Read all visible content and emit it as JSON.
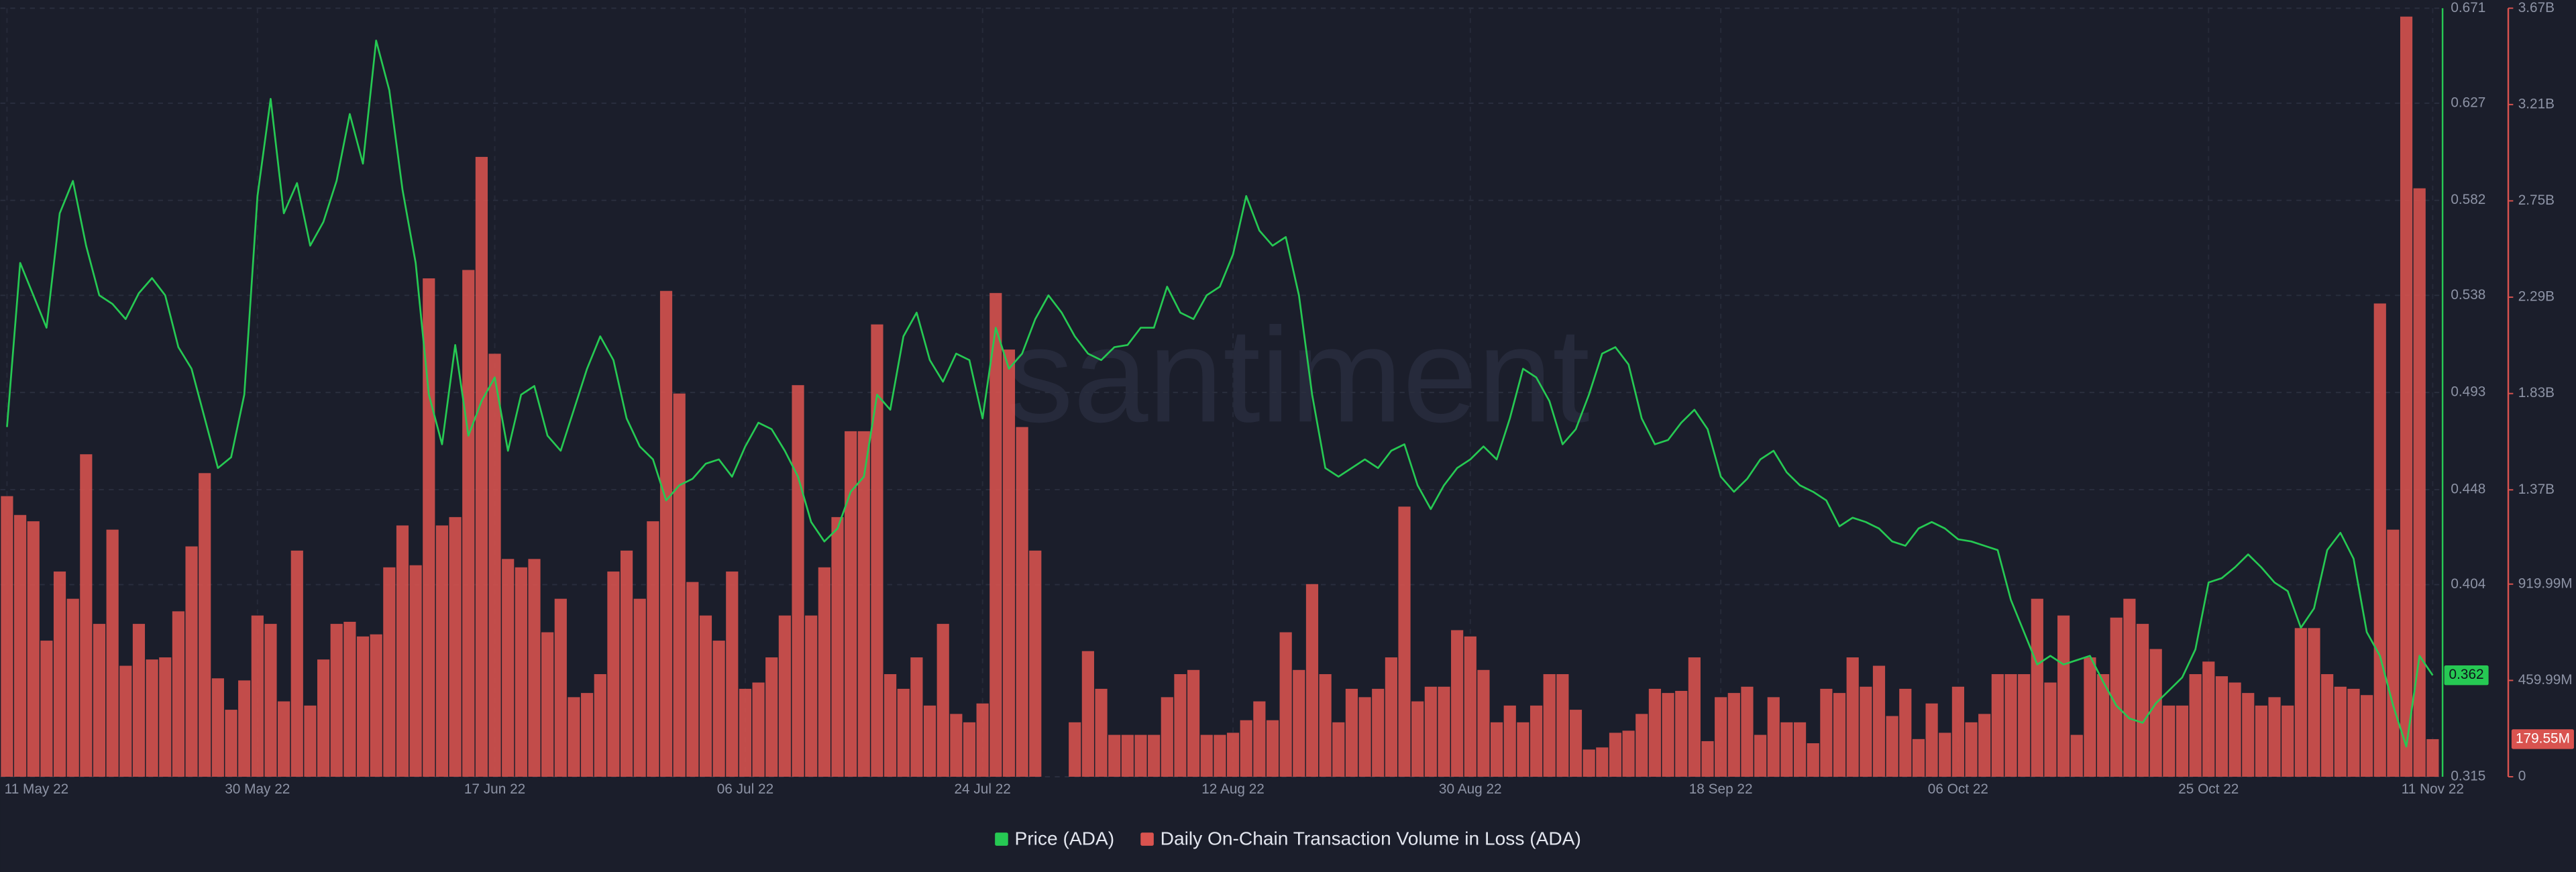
{
  "chart_data": {
    "type": "combo",
    "watermark": "santiment",
    "x": [
      "11 May 22",
      "12 May 22",
      "13 May 22",
      "14 May 22",
      "15 May 22",
      "16 May 22",
      "17 May 22",
      "18 May 22",
      "19 May 22",
      "20 May 22",
      "21 May 22",
      "22 May 22",
      "23 May 22",
      "24 May 22",
      "25 May 22",
      "26 May 22",
      "27 May 22",
      "28 May 22",
      "29 May 22",
      "30 May 22",
      "31 May 22",
      "01 Jun 22",
      "02 Jun 22",
      "03 Jun 22",
      "04 Jun 22",
      "05 Jun 22",
      "06 Jun 22",
      "07 Jun 22",
      "08 Jun 22",
      "09 Jun 22",
      "10 Jun 22",
      "11 Jun 22",
      "12 Jun 22",
      "13 Jun 22",
      "14 Jun 22",
      "15 Jun 22",
      "16 Jun 22",
      "17 Jun 22",
      "18 Jun 22",
      "19 Jun 22",
      "20 Jun 22",
      "21 Jun 22",
      "22 Jun 22",
      "23 Jun 22",
      "24 Jun 22",
      "25 Jun 22",
      "26 Jun 22",
      "27 Jun 22",
      "28 Jun 22",
      "29 Jun 22",
      "30 Jun 22",
      "01 Jul 22",
      "02 Jul 22",
      "03 Jul 22",
      "04 Jul 22",
      "05 Jul 22",
      "06 Jul 22",
      "07 Jul 22",
      "08 Jul 22",
      "09 Jul 22",
      "10 Jul 22",
      "11 Jul 22",
      "12 Jul 22",
      "13 Jul 22",
      "14 Jul 22",
      "15 Jul 22",
      "16 Jul 22",
      "17 Jul 22",
      "18 Jul 22",
      "19 Jul 22",
      "20 Jul 22",
      "21 Jul 22",
      "22 Jul 22",
      "23 Jul 22",
      "24 Jul 22",
      "25 Jul 22",
      "26 Jul 22",
      "27 Jul 22",
      "28 Jul 22",
      "29 Jul 22",
      "30 Jul 22",
      "31 Jul 22",
      "01 Aug 22",
      "02 Aug 22",
      "03 Aug 22",
      "04 Aug 22",
      "05 Aug 22",
      "06 Aug 22",
      "07 Aug 22",
      "08 Aug 22",
      "09 Aug 22",
      "10 Aug 22",
      "11 Aug 22",
      "12 Aug 22",
      "13 Aug 22",
      "14 Aug 22",
      "15 Aug 22",
      "16 Aug 22",
      "17 Aug 22",
      "18 Aug 22",
      "19 Aug 22",
      "20 Aug 22",
      "21 Aug 22",
      "22 Aug 22",
      "23 Aug 22",
      "24 Aug 22",
      "25 Aug 22",
      "26 Aug 22",
      "27 Aug 22",
      "28 Aug 22",
      "29 Aug 22",
      "30 Aug 22",
      "31 Aug 22",
      "01 Sep 22",
      "02 Sep 22",
      "03 Sep 22",
      "04 Sep 22",
      "05 Sep 22",
      "06 Sep 22",
      "07 Sep 22",
      "08 Sep 22",
      "09 Sep 22",
      "10 Sep 22",
      "11 Sep 22",
      "12 Sep 22",
      "13 Sep 22",
      "14 Sep 22",
      "15 Sep 22",
      "16 Sep 22",
      "17 Sep 22",
      "18 Sep 22",
      "19 Sep 22",
      "20 Sep 22",
      "21 Sep 22",
      "22 Sep 22",
      "23 Sep 22",
      "24 Sep 22",
      "25 Sep 22",
      "26 Sep 22",
      "27 Sep 22",
      "28 Sep 22",
      "29 Sep 22",
      "30 Sep 22",
      "01 Oct 22",
      "02 Oct 22",
      "03 Oct 22",
      "04 Oct 22",
      "05 Oct 22",
      "06 Oct 22",
      "07 Oct 22",
      "08 Oct 22",
      "09 Oct 22",
      "10 Oct 22",
      "11 Oct 22",
      "12 Oct 22",
      "13 Oct 22",
      "14 Oct 22",
      "15 Oct 22",
      "16 Oct 22",
      "17 Oct 22",
      "18 Oct 22",
      "19 Oct 22",
      "20 Oct 22",
      "21 Oct 22",
      "22 Oct 22",
      "23 Oct 22",
      "24 Oct 22",
      "25 Oct 22",
      "26 Oct 22",
      "27 Oct 22",
      "28 Oct 22",
      "29 Oct 22",
      "30 Oct 22",
      "31 Oct 22",
      "01 Nov 22",
      "02 Nov 22",
      "03 Nov 22",
      "04 Nov 22",
      "05 Nov 22",
      "06 Nov 22",
      "07 Nov 22",
      "08 Nov 22",
      "09 Nov 22",
      "10 Nov 22",
      "11 Nov 22"
    ],
    "xticks": [
      "11 May 22",
      "30 May 22",
      "17 Jun 22",
      "06 Jul 22",
      "24 Jul 22",
      "12 Aug 22",
      "30 Aug 22",
      "18 Sep 22",
      "06 Oct 22",
      "25 Oct 22",
      "11 Nov 22"
    ],
    "ylim": [
      0.315,
      0.671
    ],
    "yticks": [
      0.315,
      0.404,
      0.448,
      0.493,
      0.538,
      0.582,
      0.627,
      0.671
    ],
    "y2lim": [
      0,
      3670000000.0
    ],
    "y2ticks": [
      0,
      {
        "value": 459990000.0,
        "label": "459.99M"
      },
      {
        "value": 919990000.0,
        "label": "919.99M"
      },
      {
        "value": 1370000000.0,
        "label": "1.37B"
      },
      {
        "value": 1830000000.0,
        "label": "1.83B"
      },
      {
        "value": 2290000000.0,
        "label": "2.29B"
      },
      {
        "value": 2750000000.0,
        "label": "2.75B"
      },
      {
        "value": 3210000000.0,
        "label": "3.21B"
      },
      {
        "value": 3670000000.0,
        "label": "3.67B"
      }
    ],
    "grid": true,
    "legend": "bottom",
    "series": [
      {
        "name": "Price (ADA)",
        "type": "line",
        "color": "#26c953",
        "values": [
          0.477,
          0.553,
          0.538,
          0.523,
          0.576,
          0.591,
          0.561,
          0.538,
          0.534,
          0.527,
          0.539,
          0.546,
          0.538,
          0.514,
          0.504,
          0.481,
          0.458,
          0.463,
          0.492,
          0.584,
          0.629,
          0.576,
          0.59,
          0.561,
          0.572,
          0.591,
          0.622,
          0.599,
          0.656,
          0.633,
          0.587,
          0.553,
          0.492,
          0.469,
          0.515,
          0.473,
          0.489,
          0.5,
          0.466,
          0.492,
          0.496,
          0.473,
          0.466,
          0.485,
          0.504,
          0.519,
          0.508,
          0.481,
          0.468,
          0.462,
          0.443,
          0.45,
          0.453,
          0.46,
          0.462,
          0.454,
          0.468,
          0.479,
          0.476,
          0.466,
          0.454,
          0.433,
          0.424,
          0.43,
          0.447,
          0.454,
          0.492,
          0.485,
          0.519,
          0.53,
          0.508,
          0.498,
          0.511,
          0.508,
          0.481,
          0.523,
          0.504,
          0.511,
          0.527,
          0.538,
          0.53,
          0.519,
          0.511,
          0.508,
          0.514,
          0.515,
          0.523,
          0.523,
          0.542,
          0.53,
          0.527,
          0.538,
          0.542,
          0.557,
          0.584,
          0.568,
          0.561,
          0.565,
          0.538,
          0.492,
          0.458,
          0.454,
          0.458,
          0.462,
          0.458,
          0.466,
          0.469,
          0.45,
          0.439,
          0.45,
          0.458,
          0.462,
          0.468,
          0.462,
          0.481,
          0.504,
          0.5,
          0.489,
          0.469,
          0.476,
          0.492,
          0.511,
          0.514,
          0.506,
          0.481,
          0.469,
          0.471,
          0.479,
          0.485,
          0.476,
          0.454,
          0.447,
          0.453,
          0.462,
          0.466,
          0.456,
          0.45,
          0.447,
          0.443,
          0.431,
          0.435,
          0.433,
          0.43,
          0.424,
          0.422,
          0.43,
          0.433,
          0.43,
          0.425,
          0.424,
          0.422,
          0.42,
          0.397,
          0.382,
          0.367,
          0.371,
          0.367,
          0.369,
          0.371,
          0.359,
          0.348,
          0.342,
          0.34,
          0.349,
          0.355,
          0.361,
          0.374,
          0.405,
          0.407,
          0.412,
          0.418,
          0.412,
          0.405,
          0.401,
          0.384,
          0.393,
          0.42,
          0.428,
          0.416,
          0.382,
          0.371,
          0.348,
          0.329,
          0.371,
          0.362
        ]
      },
      {
        "name": "Daily On-Chain Transaction Volume in Loss (ADA)",
        "type": "bar",
        "axis": "y2",
        "color": "#d9534f",
        "last_value_label": "179.55M",
        "values": [
          1340000000.0,
          1250000000.0,
          1220000000.0,
          650000000.0,
          980000000.0,
          850000000.0,
          1540000000.0,
          730000000.0,
          1180000000.0,
          530000000.0,
          730000000.0,
          560000000.0,
          570000000.0,
          790000000.0,
          1100000000.0,
          1450000000.0,
          470000000.0,
          320000000.0,
          460000000.0,
          770000000.0,
          730000000.0,
          360000000.0,
          1080000000.0,
          340000000.0,
          560000000.0,
          730000000.0,
          740000000.0,
          670000000.0,
          680000000.0,
          1000000000.0,
          1200000000.0,
          1010000000.0,
          2380000000.0,
          1200000000.0,
          1240000000.0,
          2420000000.0,
          2960000000.0,
          2020000000.0,
          1040000000.0,
          1000000000.0,
          1040000000.0,
          690000000.0,
          850000000.0,
          380000000.0,
          400000000.0,
          490000000.0,
          980000000.0,
          1080000000.0,
          850000000.0,
          1220000000.0,
          2320000000.0,
          1830000000.0,
          930000000.0,
          770000000.0,
          650000000.0,
          980000000.0,
          420000000.0,
          450000000.0,
          570000000.0,
          770000000.0,
          1870000000.0,
          770000000.0,
          1000000000.0,
          1240000000.0,
          1650000000.0,
          1650000000.0,
          2160000000.0,
          490000000.0,
          420000000.0,
          570000000.0,
          340000000.0,
          730000000.0,
          300000000.0,
          260000000.0,
          350000000.0,
          2310000000.0,
          2040000000.0,
          1670000000.0,
          1080000000.0,
          null,
          null,
          260000000.0,
          600000000.0,
          420000000.0,
          200000000.0,
          200000000.0,
          200000000.0,
          200000000.0,
          380000000.0,
          490000000.0,
          510000000.0,
          200000000.0,
          200000000.0,
          210000000.0,
          270000000.0,
          360000000.0,
          270000000.0,
          690000000.0,
          510000000.0,
          920000000.0,
          490000000.0,
          260000000.0,
          420000000.0,
          380000000.0,
          420000000.0,
          570000000.0,
          1290000000.0,
          360000000.0,
          430000000.0,
          430000000.0,
          700000000.0,
          670000000.0,
          510000000.0,
          260000000.0,
          340000000.0,
          260000000.0,
          340000000.0,
          490000000.0,
          490000000.0,
          320000000.0,
          130000000.0,
          140000000.0,
          210000000.0,
          220000000.0,
          300000000.0,
          420000000.0,
          400000000.0,
          410000000.0,
          570000000.0,
          170000000.0,
          380000000.0,
          400000000.0,
          430000000.0,
          200000000.0,
          380000000.0,
          260000000.0,
          260000000.0,
          160000000.0,
          420000000.0,
          400000000.0,
          570000000.0,
          430000000.0,
          530000000.0,
          290000000.0,
          420000000.0,
          180000000.0,
          350000000.0,
          210000000.0,
          430000000.0,
          260000000.0,
          300000000.0,
          490000000.0,
          490000000.0,
          490000000.0,
          850000000.0,
          450000000.0,
          770000000.0,
          200000000.0,
          570000000.0,
          490000000.0,
          760000000.0,
          850000000.0,
          730000000.0,
          610000000.0,
          340000000.0,
          340000000.0,
          490000000.0,
          550000000.0,
          480000000.0,
          450000000.0,
          400000000.0,
          340000000.0,
          380000000.0,
          340000000.0,
          710000000.0,
          710000000.0,
          490000000.0,
          430000000.0,
          420000000.0,
          390000000.0,
          2260000000.0,
          1180000000.0,
          3630000000.0,
          2810000000.0,
          179550000.0
        ]
      }
    ]
  }
}
